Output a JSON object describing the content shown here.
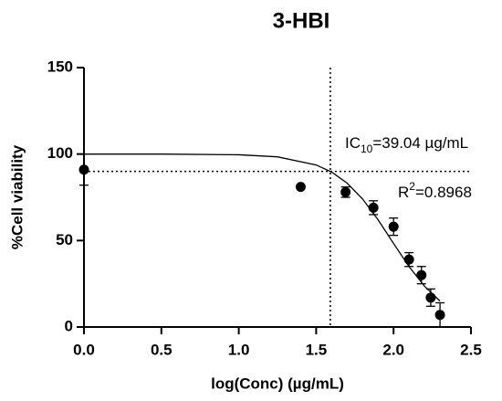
{
  "chart_data": {
    "type": "scatter",
    "title": "3-HBI",
    "x_label": "log(Conc) (µg/mL)",
    "y_label": "%Cell viability",
    "xlim": [
      0,
      2.5
    ],
    "ylim": [
      0,
      150
    ],
    "xticks": [
      {
        "value": 0,
        "label": "0.0"
      },
      0.5,
      {
        "value": 1,
        "label": "1.0"
      },
      1.5,
      {
        "value": 2,
        "label": "2.0"
      },
      2.5
    ],
    "yticks": [
      0,
      50,
      100,
      150
    ],
    "points": {
      "color": "#000000",
      "x": [
        0,
        1.4,
        1.69,
        1.87,
        2.0,
        2.1,
        2.18,
        2.24,
        2.3
      ],
      "values": [
        91,
        81,
        78,
        69,
        58,
        39,
        30,
        17,
        7
      ],
      "errors": [
        9,
        null,
        3,
        4,
        5,
        4,
        5,
        5,
        7
      ]
    },
    "fit": {
      "color": "#000000",
      "x": [
        0,
        0.5,
        1.0,
        1.25,
        1.5,
        1.6,
        1.7,
        1.8,
        1.9,
        2.0,
        2.1,
        2.2,
        2.3
      ],
      "values": [
        100,
        100,
        99.6,
        98.4,
        93.7,
        89.6,
        83.2,
        74.0,
        62.0,
        48.3,
        34.9,
        23.6,
        15.0
      ]
    },
    "reference_lines": {
      "x": 1.5915,
      "y": 90
    },
    "annotations": [
      {
        "parts": [
          "IC",
          "10",
          "=39.04 µg/mL"
        ]
      },
      {
        "parts": [
          "R",
          "2",
          "=0.8968"
        ]
      }
    ]
  }
}
